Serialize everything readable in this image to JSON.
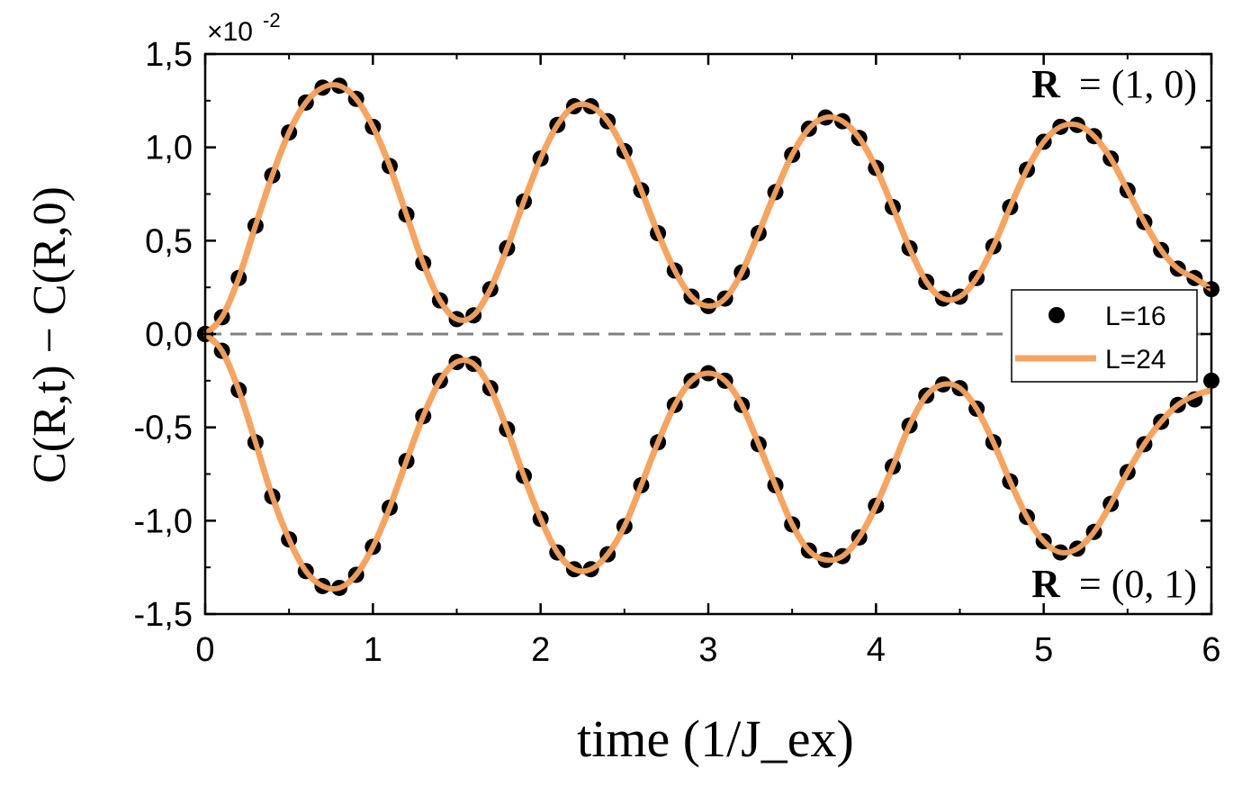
{
  "chart_data": {
    "type": "scatter",
    "title": "",
    "xlabel": "time (1/J_ex)",
    "ylabel": "C(R,t) − C(R,0)",
    "y_scale_note": "×10",
    "y_scale_exponent": "-2",
    "xlim": [
      0,
      6
    ],
    "ylim": [
      -1.5,
      1.5
    ],
    "xticks": [
      "0",
      "1",
      "2",
      "3",
      "4",
      "5",
      "6"
    ],
    "yticks": [
      "1,5",
      "1,0",
      "0,5",
      "0,0",
      "-0,5",
      "-1,0",
      "-1,5"
    ],
    "ytick_values": [
      1.5,
      1.0,
      0.5,
      0.0,
      -0.5,
      -1.0,
      -1.5
    ],
    "annotations": [
      {
        "text": "R = (1, 0)",
        "bold_part": "R",
        "rest": "= (1, 0)",
        "anchor": "top-right"
      },
      {
        "text": "R = (0, 1)",
        "bold_part": "R",
        "rest": "= (0, 1)",
        "anchor": "bottom-right"
      }
    ],
    "reference_line": {
      "y": 0.0,
      "style": "dashed",
      "color": "#808080"
    },
    "legend": {
      "placement": "right",
      "entries": [
        {
          "label": "L=16",
          "marker": "dot",
          "color": "#000000"
        },
        {
          "label": "L=24",
          "marker": "line",
          "color": "#f5a461"
        }
      ]
    },
    "series": [
      {
        "name": "L=24",
        "kind": "line",
        "color": "#f5a461",
        "branch": "R = (1, 0)",
        "x": [
          0.0,
          0.1,
          0.2,
          0.3,
          0.4,
          0.5,
          0.6,
          0.7,
          0.8,
          0.9,
          1.0,
          1.1,
          1.2,
          1.3,
          1.4,
          1.5,
          1.6,
          1.7,
          1.8,
          1.9,
          2.0,
          2.1,
          2.2,
          2.3,
          2.4,
          2.5,
          2.6,
          2.7,
          2.8,
          2.9,
          3.0,
          3.1,
          3.2,
          3.3,
          3.4,
          3.5,
          3.6,
          3.7,
          3.8,
          3.9,
          4.0,
          4.1,
          4.2,
          4.3,
          4.4,
          4.5,
          4.6,
          4.7,
          4.8,
          4.9,
          5.0,
          5.1,
          5.2,
          5.3,
          5.4,
          5.5,
          5.6,
          5.7,
          5.8,
          5.9,
          6.0
        ],
        "y": [
          0.0,
          0.09,
          0.3,
          0.58,
          0.85,
          1.08,
          1.24,
          1.32,
          1.33,
          1.26,
          1.11,
          0.9,
          0.64,
          0.38,
          0.18,
          0.08,
          0.1,
          0.24,
          0.46,
          0.71,
          0.94,
          1.12,
          1.22,
          1.22,
          1.14,
          0.98,
          0.77,
          0.54,
          0.34,
          0.2,
          0.15,
          0.19,
          0.33,
          0.54,
          0.76,
          0.96,
          1.1,
          1.16,
          1.14,
          1.05,
          0.89,
          0.68,
          0.46,
          0.28,
          0.19,
          0.2,
          0.3,
          0.47,
          0.68,
          0.88,
          1.03,
          1.11,
          1.12,
          1.06,
          0.94,
          0.77,
          0.6,
          0.45,
          0.35,
          0.3,
          0.24
        ]
      },
      {
        "name": "L=24",
        "kind": "line",
        "color": "#f5a461",
        "branch": "R = (0, 1)",
        "x": [
          0.0,
          0.1,
          0.2,
          0.3,
          0.4,
          0.5,
          0.6,
          0.7,
          0.8,
          0.9,
          1.0,
          1.1,
          1.2,
          1.3,
          1.4,
          1.5,
          1.6,
          1.7,
          1.8,
          1.9,
          2.0,
          2.1,
          2.2,
          2.3,
          2.4,
          2.5,
          2.6,
          2.7,
          2.8,
          2.9,
          3.0,
          3.1,
          3.2,
          3.3,
          3.4,
          3.5,
          3.6,
          3.7,
          3.8,
          3.9,
          4.0,
          4.1,
          4.2,
          4.3,
          4.4,
          4.5,
          4.6,
          4.7,
          4.8,
          4.9,
          5.0,
          5.1,
          5.2,
          5.3,
          5.4,
          5.5,
          5.6,
          5.7,
          5.8,
          5.9,
          6.0
        ],
        "y": [
          0.0,
          -0.09,
          -0.3,
          -0.58,
          -0.87,
          -1.1,
          -1.27,
          -1.35,
          -1.36,
          -1.29,
          -1.14,
          -0.93,
          -0.68,
          -0.44,
          -0.25,
          -0.15,
          -0.16,
          -0.29,
          -0.51,
          -0.76,
          -0.99,
          -1.17,
          -1.26,
          -1.26,
          -1.18,
          -1.03,
          -0.81,
          -0.58,
          -0.38,
          -0.25,
          -0.21,
          -0.25,
          -0.38,
          -0.59,
          -0.81,
          -1.02,
          -1.16,
          -1.21,
          -1.19,
          -1.09,
          -0.92,
          -0.71,
          -0.49,
          -0.33,
          -0.27,
          -0.29,
          -0.4,
          -0.58,
          -0.79,
          -0.98,
          -1.11,
          -1.17,
          -1.15,
          -1.06,
          -0.91,
          -0.74,
          -0.59,
          -0.47,
          -0.38,
          -0.33,
          -0.3
        ]
      },
      {
        "name": "L=16",
        "kind": "points",
        "color": "#000000",
        "branch": "R = (1, 0)",
        "x": [
          0.0,
          0.1,
          0.2,
          0.3,
          0.4,
          0.5,
          0.6,
          0.7,
          0.8,
          0.9,
          1.0,
          1.1,
          1.2,
          1.3,
          1.4,
          1.5,
          1.6,
          1.7,
          1.8,
          1.9,
          2.0,
          2.1,
          2.2,
          2.3,
          2.4,
          2.5,
          2.6,
          2.7,
          2.8,
          2.9,
          3.0,
          3.1,
          3.2,
          3.3,
          3.4,
          3.5,
          3.6,
          3.7,
          3.8,
          3.9,
          4.0,
          4.1,
          4.2,
          4.3,
          4.4,
          4.5,
          4.6,
          4.7,
          4.8,
          4.9,
          5.0,
          5.1,
          5.2,
          5.3,
          5.4,
          5.5,
          5.6,
          5.7,
          5.8,
          5.9,
          6.0
        ],
        "y": [
          0.0,
          0.09,
          0.3,
          0.58,
          0.85,
          1.08,
          1.24,
          1.32,
          1.33,
          1.26,
          1.11,
          0.9,
          0.64,
          0.38,
          0.18,
          0.08,
          0.1,
          0.24,
          0.46,
          0.71,
          0.94,
          1.12,
          1.22,
          1.22,
          1.14,
          0.98,
          0.77,
          0.54,
          0.34,
          0.2,
          0.15,
          0.19,
          0.33,
          0.54,
          0.76,
          0.96,
          1.1,
          1.16,
          1.14,
          1.05,
          0.89,
          0.68,
          0.46,
          0.28,
          0.19,
          0.2,
          0.3,
          0.47,
          0.68,
          0.88,
          1.03,
          1.11,
          1.12,
          1.06,
          0.94,
          0.77,
          0.6,
          0.45,
          0.35,
          0.3,
          0.24
        ]
      },
      {
        "name": "L=16",
        "kind": "points",
        "color": "#000000",
        "branch": "R = (0, 1)",
        "x": [
          0.0,
          0.1,
          0.2,
          0.3,
          0.4,
          0.5,
          0.6,
          0.7,
          0.8,
          0.9,
          1.0,
          1.1,
          1.2,
          1.3,
          1.4,
          1.5,
          1.6,
          1.7,
          1.8,
          1.9,
          2.0,
          2.1,
          2.2,
          2.3,
          2.4,
          2.5,
          2.6,
          2.7,
          2.8,
          2.9,
          3.0,
          3.1,
          3.2,
          3.3,
          3.4,
          3.5,
          3.6,
          3.7,
          3.8,
          3.9,
          4.0,
          4.1,
          4.2,
          4.3,
          4.4,
          4.5,
          4.6,
          4.7,
          4.8,
          4.9,
          5.0,
          5.1,
          5.2,
          5.3,
          5.4,
          5.5,
          5.6,
          5.7,
          5.8,
          5.9,
          6.0
        ],
        "y": [
          0.0,
          -0.09,
          -0.3,
          -0.58,
          -0.87,
          -1.1,
          -1.27,
          -1.35,
          -1.36,
          -1.29,
          -1.14,
          -0.93,
          -0.68,
          -0.44,
          -0.25,
          -0.15,
          -0.16,
          -0.29,
          -0.51,
          -0.76,
          -0.99,
          -1.17,
          -1.26,
          -1.26,
          -1.18,
          -1.03,
          -0.81,
          -0.58,
          -0.38,
          -0.25,
          -0.21,
          -0.25,
          -0.38,
          -0.59,
          -0.81,
          -1.02,
          -1.16,
          -1.21,
          -1.19,
          -1.09,
          -0.92,
          -0.71,
          -0.49,
          -0.33,
          -0.27,
          -0.29,
          -0.4,
          -0.58,
          -0.79,
          -0.98,
          -1.11,
          -1.17,
          -1.15,
          -1.06,
          -0.91,
          -0.74,
          -0.59,
          -0.47,
          -0.38,
          -0.35,
          -0.25
        ]
      }
    ]
  }
}
